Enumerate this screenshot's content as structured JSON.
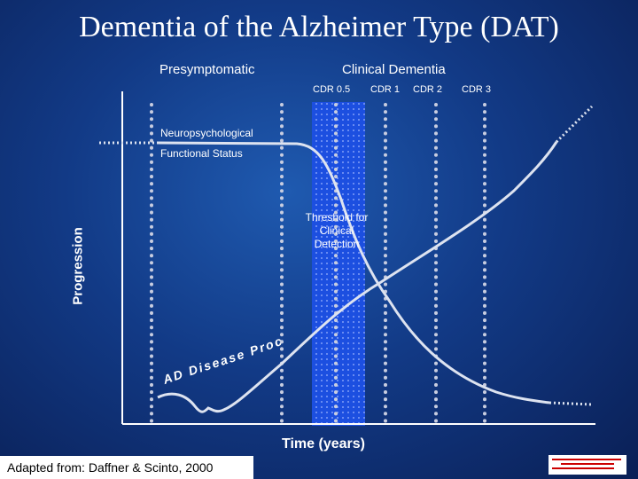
{
  "title": "Dementia of the Alzheimer Type (DAT)",
  "phases": {
    "presymptomatic": "Presymptomatic",
    "clinical": "Clinical Dementia"
  },
  "cdr_labels": [
    "CDR 0.5",
    "CDR 1",
    "CDR 2",
    "CDR 3"
  ],
  "curve_labels": {
    "neuropsychological": "Neuropsychological",
    "functional_status": "Functional Status",
    "disease_process": "AD Disease Process"
  },
  "threshold_label": "Threshold for Clinical Detection",
  "y_axis_label": "Progression",
  "x_axis_label": "Time (years)",
  "source": "Adapted from: Daffner & Scinto, 2000",
  "colors": {
    "background": "#123a86",
    "band": "#1c4fe0",
    "text": "#ffffff",
    "dots": "#c8cde0",
    "curve": "#dde3f0",
    "logo_lines": "#cc0000"
  }
}
